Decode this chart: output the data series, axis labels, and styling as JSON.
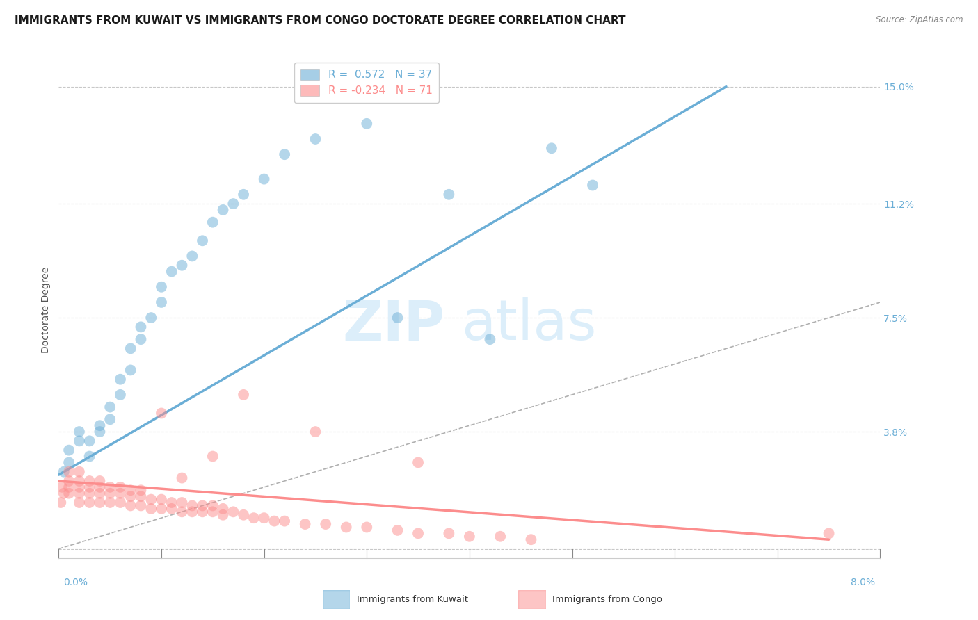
{
  "title": "IMMIGRANTS FROM KUWAIT VS IMMIGRANTS FROM CONGO DOCTORATE DEGREE CORRELATION CHART",
  "source": "Source: ZipAtlas.com",
  "ylabel": "Doctorate Degree",
  "xlim": [
    0.0,
    0.08
  ],
  "ylim": [
    -0.003,
    0.158
  ],
  "kuwait_color": "#6baed6",
  "congo_color": "#fc8d8d",
  "kuwait_R": 0.572,
  "kuwait_N": 37,
  "congo_R": -0.234,
  "congo_N": 71,
  "kuwait_scatter_x": [
    0.0005,
    0.001,
    0.001,
    0.002,
    0.002,
    0.003,
    0.003,
    0.004,
    0.004,
    0.005,
    0.005,
    0.006,
    0.006,
    0.007,
    0.007,
    0.008,
    0.008,
    0.009,
    0.01,
    0.01,
    0.011,
    0.012,
    0.013,
    0.014,
    0.015,
    0.016,
    0.017,
    0.018,
    0.02,
    0.022,
    0.025,
    0.03,
    0.033,
    0.038,
    0.042,
    0.048,
    0.052
  ],
  "kuwait_scatter_y": [
    0.025,
    0.028,
    0.032,
    0.035,
    0.038,
    0.03,
    0.035,
    0.038,
    0.04,
    0.042,
    0.046,
    0.05,
    0.055,
    0.058,
    0.065,
    0.068,
    0.072,
    0.075,
    0.08,
    0.085,
    0.09,
    0.092,
    0.095,
    0.1,
    0.106,
    0.11,
    0.112,
    0.115,
    0.12,
    0.128,
    0.133,
    0.138,
    0.075,
    0.115,
    0.068,
    0.13,
    0.118
  ],
  "congo_scatter_x": [
    0.0002,
    0.0003,
    0.0005,
    0.001,
    0.001,
    0.001,
    0.001,
    0.002,
    0.002,
    0.002,
    0.002,
    0.002,
    0.003,
    0.003,
    0.003,
    0.003,
    0.004,
    0.004,
    0.004,
    0.004,
    0.005,
    0.005,
    0.005,
    0.006,
    0.006,
    0.006,
    0.007,
    0.007,
    0.007,
    0.008,
    0.008,
    0.008,
    0.009,
    0.009,
    0.01,
    0.01,
    0.011,
    0.011,
    0.012,
    0.012,
    0.013,
    0.013,
    0.014,
    0.014,
    0.015,
    0.015,
    0.016,
    0.016,
    0.017,
    0.018,
    0.019,
    0.02,
    0.021,
    0.022,
    0.024,
    0.026,
    0.028,
    0.03,
    0.033,
    0.035,
    0.038,
    0.04,
    0.043,
    0.046,
    0.035,
    0.025,
    0.018,
    0.015,
    0.012,
    0.01,
    0.075
  ],
  "congo_scatter_y": [
    0.015,
    0.02,
    0.018,
    0.018,
    0.02,
    0.022,
    0.025,
    0.015,
    0.018,
    0.02,
    0.022,
    0.025,
    0.015,
    0.018,
    0.02,
    0.022,
    0.015,
    0.018,
    0.02,
    0.022,
    0.015,
    0.018,
    0.02,
    0.015,
    0.018,
    0.02,
    0.014,
    0.017,
    0.019,
    0.014,
    0.017,
    0.019,
    0.013,
    0.016,
    0.013,
    0.016,
    0.013,
    0.015,
    0.012,
    0.015,
    0.012,
    0.014,
    0.012,
    0.014,
    0.012,
    0.014,
    0.011,
    0.013,
    0.012,
    0.011,
    0.01,
    0.01,
    0.009,
    0.009,
    0.008,
    0.008,
    0.007,
    0.007,
    0.006,
    0.005,
    0.005,
    0.004,
    0.004,
    0.003,
    0.028,
    0.038,
    0.05,
    0.03,
    0.023,
    0.044,
    0.005
  ],
  "kuwait_line_x": [
    0.0,
    0.065
  ],
  "kuwait_line_y": [
    0.024,
    0.15
  ],
  "congo_line_x": [
    0.0,
    0.075
  ],
  "congo_line_y": [
    0.022,
    0.003
  ],
  "diag_line_x": [
    0.0,
    0.08
  ],
  "diag_line_y": [
    0.0,
    0.08
  ],
  "ytick_vals": [
    0.0,
    0.038,
    0.075,
    0.112,
    0.15
  ],
  "ytick_labels": [
    "",
    "3.8%",
    "7.5%",
    "11.2%",
    "15.0%"
  ],
  "background_color": "#ffffff",
  "grid_color": "#c8c8c8",
  "title_fontsize": 11,
  "axis_label_fontsize": 10,
  "tick_fontsize": 10,
  "legend_fontsize": 11,
  "watermark_zip": "ZIP",
  "watermark_atlas": "atlas",
  "watermark_color": "#dceefa"
}
